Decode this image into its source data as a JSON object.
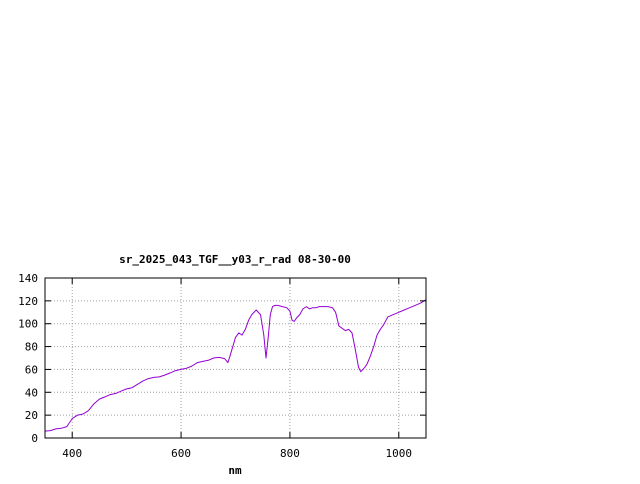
{
  "chart_data": {
    "type": "line",
    "title": "sr_2025_043_TGF__y03_r_rad 08-30-00",
    "xlabel": "nm",
    "ylabel": "",
    "xlim": [
      350,
      1050
    ],
    "ylim": [
      0,
      140
    ],
    "xticks": [
      400,
      600,
      800,
      1000
    ],
    "yticks": [
      0,
      20,
      40,
      60,
      80,
      100,
      120,
      140
    ],
    "grid": true,
    "legend": "none",
    "series": [
      {
        "color": "#9400d3",
        "x": [
          350,
          360,
          370,
          380,
          390,
          400,
          410,
          420,
          430,
          440,
          450,
          460,
          470,
          480,
          490,
          500,
          510,
          520,
          530,
          540,
          550,
          560,
          570,
          580,
          590,
          600,
          610,
          620,
          630,
          640,
          650,
          660,
          670,
          680,
          686,
          692,
          700,
          706,
          712,
          718,
          724,
          730,
          738,
          746,
          752,
          756,
          760,
          764,
          768,
          772,
          778,
          786,
          794,
          800,
          804,
          808,
          812,
          818,
          824,
          830,
          836,
          842,
          848,
          854,
          862,
          870,
          878,
          884,
          890,
          896,
          902,
          908,
          914,
          920,
          926,
          930,
          934,
          938,
          942,
          948,
          954,
          960,
          966,
          972,
          980,
          990,
          1000,
          1010,
          1020,
          1030,
          1040,
          1050
        ],
        "y": [
          6,
          6.5,
          8,
          8.5,
          10,
          17,
          20,
          21,
          24,
          30,
          34,
          36,
          38,
          39,
          41,
          43,
          44,
          47,
          50,
          52,
          53,
          53.5,
          55,
          57,
          59,
          60,
          61,
          63,
          66,
          67,
          68,
          70,
          70.5,
          69.5,
          66,
          75,
          88,
          92,
          90,
          95,
          103,
          108,
          112,
          108,
          90,
          70,
          88,
          108,
          115,
          116,
          116,
          115,
          114,
          111,
          103,
          102,
          105,
          108,
          113,
          115,
          113,
          114,
          114,
          115,
          115,
          115,
          114,
          110,
          98,
          96,
          94,
          95,
          92,
          78,
          62,
          58,
          60,
          62,
          65,
          72,
          80,
          90,
          95,
          99,
          106,
          108,
          110,
          112,
          114,
          116,
          118,
          121
        ]
      }
    ]
  }
}
